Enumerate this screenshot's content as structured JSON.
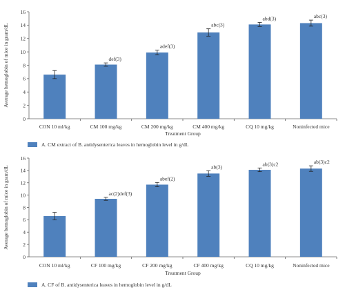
{
  "chart_data": [
    {
      "type": "bar",
      "xlabel": "Treatment Group",
      "ylabel": "Average hemoglobin of mice in gram/dL",
      "ylim": [
        0,
        16
      ],
      "yticks": [
        0,
        2,
        4,
        6,
        8,
        10,
        12,
        14,
        16
      ],
      "categories": [
        "CON 10 ml/kg",
        "CM 100 mg/kg",
        "CM 200 mg/kg",
        "CM 400 mg/kg",
        "CQ 10 mg/kg",
        "Noninfected mice"
      ],
      "values": [
        6.6,
        8.1,
        9.9,
        12.9,
        14.1,
        14.3
      ],
      "errors": [
        0.6,
        0.25,
        0.35,
        0.55,
        0.3,
        0.45
      ],
      "bar_labels": [
        "",
        "def(3)",
        "adef(3)",
        "abc(3)",
        "abd(3)",
        "abc(3)"
      ],
      "legend": "A. CM extract of B. antidysenterica leaves in hemoglobin level in g/dL",
      "grid": false,
      "bar_color": "#4f81bd"
    },
    {
      "type": "bar",
      "xlabel": "Treatment Group",
      "ylabel": "Average hemoglobin of mice in gram/dL",
      "ylim": [
        0,
        16
      ],
      "yticks": [
        0,
        2,
        4,
        6,
        8,
        10,
        12,
        14,
        16
      ],
      "categories": [
        "CON 10 ml/kg",
        "CF 100 mg/kg",
        "CF 200 mg/kg",
        "CF 400 mg/kg",
        "CQ 10 mg/kg",
        "Noninfected mice"
      ],
      "values": [
        6.6,
        9.4,
        11.7,
        13.5,
        14.1,
        14.3
      ],
      "errors": [
        0.6,
        0.25,
        0.35,
        0.45,
        0.3,
        0.45
      ],
      "bar_labels": [
        "",
        "ac(2)def(3)",
        "abef(2)",
        "ab(3)",
        "ab(3)c2",
        "ab(3)c2"
      ],
      "legend": "A. CF of B. antidysenterica leaves in hemoglobin level in g/dL",
      "grid": false,
      "bar_color": "#4f81bd"
    }
  ]
}
